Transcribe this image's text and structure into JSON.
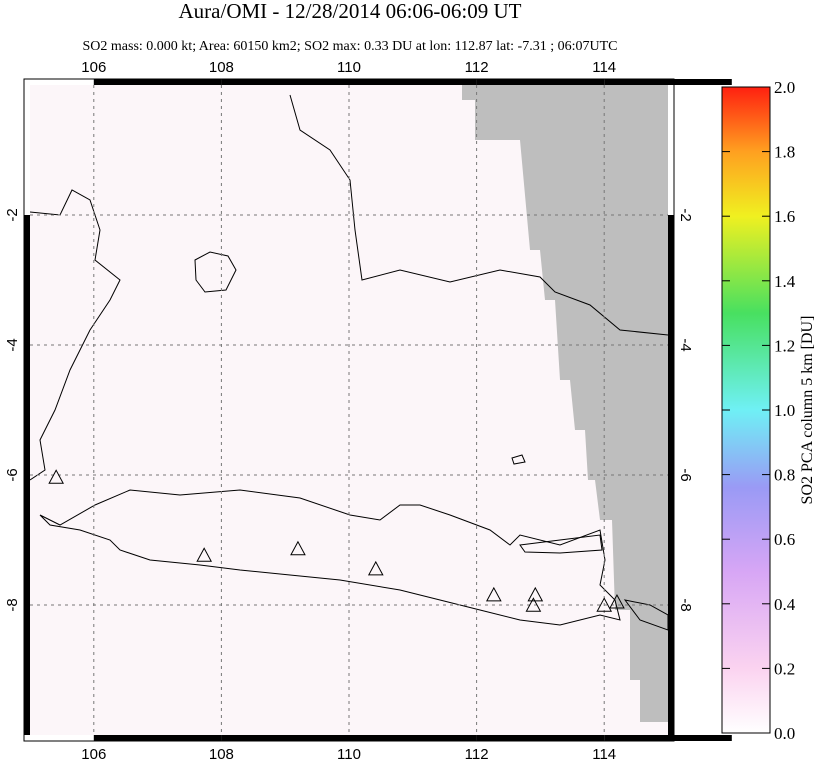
{
  "chart_data": {
    "type": "map",
    "title": "Aura/OMI - 12/28/2014 06:06-06:09 UT",
    "subtitle": "SO2 mass: 0.000 kt; Area: 60150 km2; SO2 max: 0.33 DU at lon: 112.87 lat: -7.31 ; 06:07UTC",
    "xlim": [
      105,
      115
    ],
    "ylim": [
      -10,
      0
    ],
    "xticks": [
      106,
      108,
      110,
      112,
      114
    ],
    "yticks": [
      -2,
      -4,
      -6,
      -8
    ],
    "grid": true,
    "volcanoes": {
      "lon": [
        105.41,
        107.73,
        109.2,
        110.42,
        112.27,
        112.92,
        112.89,
        114.0,
        114.2
      ],
      "lat": [
        -6.05,
        -7.25,
        -7.15,
        -7.46,
        -7.86,
        -7.86,
        -8.02,
        -8.02,
        -7.97
      ]
    },
    "colorbar": {
      "label": "SO2 PCA column 5 km [DU]",
      "clim": [
        0,
        2
      ],
      "ticks": [
        {
          "value": 0,
          "label": "0.0"
        },
        0.2,
        0.4,
        0.6,
        0.8,
        {
          "value": 1,
          "label": "1.0"
        },
        1.2,
        1.4,
        1.6,
        1.8,
        {
          "value": 2,
          "label": "2.0"
        }
      ]
    }
  }
}
